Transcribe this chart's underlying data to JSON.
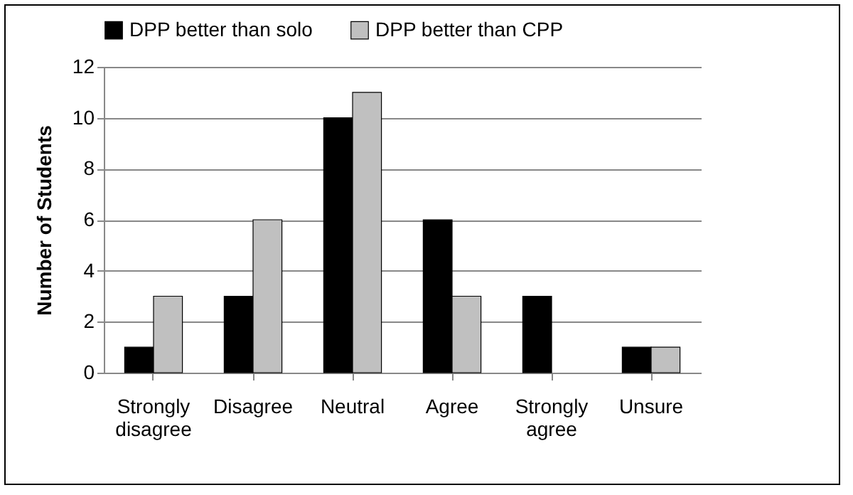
{
  "chart_data": {
    "type": "bar",
    "ylabel": "Number of Students",
    "categories": [
      "Strongly disagree",
      "Disagree",
      "Neutral",
      "Agree",
      "Strongly agree",
      "Unsure"
    ],
    "series": [
      {
        "name": "DPP better than solo",
        "color": "#000000",
        "values": [
          1,
          3,
          10,
          6,
          3,
          1
        ]
      },
      {
        "name": "DPP better than CPP",
        "color": "#c0c0c0",
        "values": [
          3,
          6,
          11,
          3,
          0,
          1
        ]
      }
    ],
    "ylim": [
      0,
      12
    ],
    "yticks": [
      0,
      2,
      4,
      6,
      8,
      10,
      12
    ],
    "grid": "y",
    "legend": "top"
  }
}
